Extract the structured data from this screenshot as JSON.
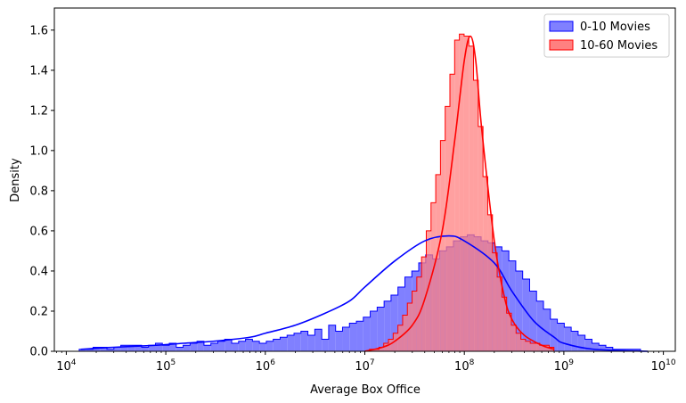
{
  "chart_data": {
    "type": "area",
    "title": "",
    "xlabel": "Average Box Office",
    "ylabel": "Density",
    "x_scale": "log",
    "x_ticks": [
      {
        "value": 10000,
        "base": "10",
        "exp": "4"
      },
      {
        "value": 100000,
        "base": "10",
        "exp": "5"
      },
      {
        "value": 1000000,
        "base": "10",
        "exp": "6"
      },
      {
        "value": 10000000,
        "base": "10",
        "exp": "7"
      },
      {
        "value": 100000000,
        "base": "10",
        "exp": "8"
      },
      {
        "value": 1000000000,
        "base": "10",
        "exp": "9"
      },
      {
        "value": 10000000000,
        "base": "10",
        "exp": "10"
      }
    ],
    "y_ticks": [
      "0.0",
      "0.2",
      "0.4",
      "0.6",
      "0.8",
      "1.0",
      "1.2",
      "1.4",
      "1.6"
    ],
    "ylim": [
      0,
      1.71
    ],
    "grid": false,
    "legend_position": "top-right",
    "series": [
      {
        "name": "0-10 Movies",
        "color": "#0000ff",
        "fill": "#8080ff",
        "hist_exp_start": 4.13,
        "hist_exp_end": 9.77,
        "hist_bins": [
          0.01,
          0.01,
          0.02,
          0.02,
          0.01,
          0.02,
          0.03,
          0.03,
          0.03,
          0.02,
          0.03,
          0.04,
          0.03,
          0.04,
          0.02,
          0.03,
          0.04,
          0.05,
          0.03,
          0.04,
          0.05,
          0.06,
          0.04,
          0.05,
          0.06,
          0.05,
          0.04,
          0.05,
          0.06,
          0.07,
          0.08,
          0.09,
          0.1,
          0.08,
          0.11,
          0.06,
          0.13,
          0.1,
          0.12,
          0.14,
          0.15,
          0.17,
          0.2,
          0.22,
          0.25,
          0.28,
          0.32,
          0.37,
          0.4,
          0.44,
          0.48,
          0.46,
          0.5,
          0.52,
          0.55,
          0.57,
          0.58,
          0.57,
          0.55,
          0.54,
          0.52,
          0.5,
          0.45,
          0.4,
          0.36,
          0.3,
          0.25,
          0.21,
          0.16,
          0.14,
          0.12,
          0.1,
          0.08,
          0.06,
          0.04,
          0.03,
          0.02,
          0.01,
          0.01,
          0.01,
          0.01
        ],
        "kde": [
          {
            "x": 14000,
            "y": 0.01
          },
          {
            "x": 30000,
            "y": 0.02
          },
          {
            "x": 80000,
            "y": 0.03
          },
          {
            "x": 150000,
            "y": 0.04
          },
          {
            "x": 300000,
            "y": 0.05
          },
          {
            "x": 700000,
            "y": 0.07
          },
          {
            "x": 1000000,
            "y": 0.09
          },
          {
            "x": 2000000,
            "y": 0.13
          },
          {
            "x": 4000000,
            "y": 0.19
          },
          {
            "x": 7000000,
            "y": 0.25
          },
          {
            "x": 10000000,
            "y": 0.32
          },
          {
            "x": 20000000,
            "y": 0.45
          },
          {
            "x": 40000000,
            "y": 0.55
          },
          {
            "x": 70000000,
            "y": 0.575
          },
          {
            "x": 100000000,
            "y": 0.55
          },
          {
            "x": 200000000,
            "y": 0.44
          },
          {
            "x": 300000000,
            "y": 0.3
          },
          {
            "x": 500000000,
            "y": 0.15
          },
          {
            "x": 800000000,
            "y": 0.07
          },
          {
            "x": 1000000000,
            "y": 0.04
          },
          {
            "x": 2000000000,
            "y": 0.01
          },
          {
            "x": 7000000000,
            "y": 0.0
          }
        ]
      },
      {
        "name": "10-60 Movies",
        "color": "#ff0000",
        "fill": "#ff8080",
        "hist_exp_start": 7.0,
        "hist_exp_end": 8.9,
        "hist_bins": [
          0.0,
          0.01,
          0.01,
          0.02,
          0.04,
          0.06,
          0.09,
          0.13,
          0.18,
          0.24,
          0.3,
          0.37,
          0.47,
          0.6,
          0.74,
          0.88,
          1.05,
          1.22,
          1.38,
          1.55,
          1.58,
          1.57,
          1.52,
          1.35,
          1.12,
          0.87,
          0.68,
          0.49,
          0.37,
          0.27,
          0.19,
          0.13,
          0.09,
          0.06,
          0.05,
          0.04,
          0.04,
          0.03,
          0.03,
          0.02
        ],
        "kde": [
          {
            "x": 10000000,
            "y": 0.0
          },
          {
            "x": 15000000,
            "y": 0.02
          },
          {
            "x": 20000000,
            "y": 0.05
          },
          {
            "x": 30000000,
            "y": 0.13
          },
          {
            "x": 40000000,
            "y": 0.26
          },
          {
            "x": 60000000,
            "y": 0.6
          },
          {
            "x": 80000000,
            "y": 1.05
          },
          {
            "x": 100000000,
            "y": 1.45
          },
          {
            "x": 115000000,
            "y": 1.57
          },
          {
            "x": 130000000,
            "y": 1.45
          },
          {
            "x": 150000000,
            "y": 1.1
          },
          {
            "x": 200000000,
            "y": 0.55
          },
          {
            "x": 250000000,
            "y": 0.28
          },
          {
            "x": 300000000,
            "y": 0.16
          },
          {
            "x": 400000000,
            "y": 0.08
          },
          {
            "x": 600000000,
            "y": 0.03
          },
          {
            "x": 800000000,
            "y": 0.01
          }
        ]
      }
    ]
  }
}
